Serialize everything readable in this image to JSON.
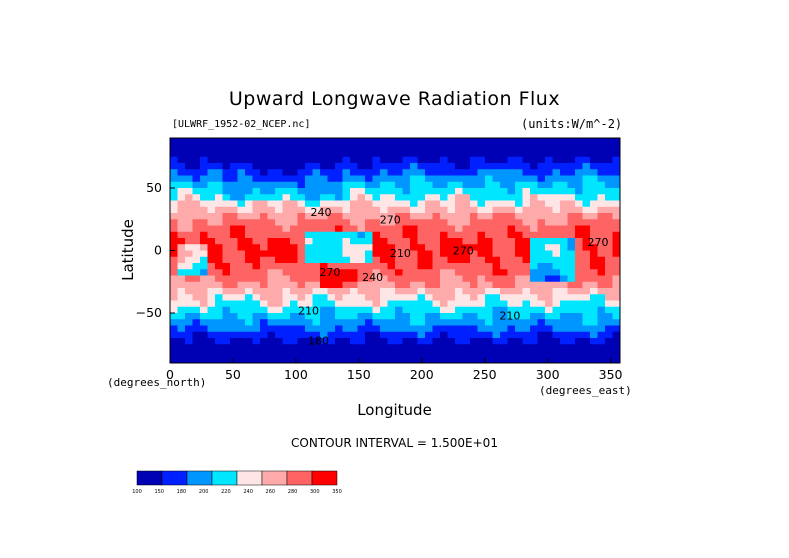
{
  "chart_data": {
    "type": "heatmap",
    "title": "Upward Longwave Radiation Flux",
    "file_label": "[ULWRF_1952-02_NCEP.nc]",
    "units_label": "(units:W/m^-2)",
    "xlabel": "Longitude",
    "ylabel": "Latitude",
    "x_units_note": "(degrees_east)",
    "y_units_note": "(degrees_north)",
    "xlim": [
      0,
      357.5
    ],
    "ylim": [
      -90,
      90
    ],
    "x_ticks": [
      0,
      50,
      100,
      150,
      200,
      250,
      300,
      350
    ],
    "y_ticks": [
      50,
      0,
      -50
    ],
    "contour_interval": "CONTOUR INTERVAL = 1.500E+01",
    "colorbar": {
      "levels": [
        "100",
        "150",
        "180",
        "200",
        "220",
        "240",
        "260",
        "280",
        "300",
        "350"
      ],
      "colors": [
        "#0000b4",
        "#0020ff",
        "#0096ff",
        "#00e6ff",
        "#ffe6e6",
        "#ffaaaa",
        "#ff6464",
        "#ff0000"
      ]
    },
    "contour_labels": [
      {
        "text": "240",
        "lon": 120,
        "lat": 31
      },
      {
        "text": "270",
        "lon": 175,
        "lat": 25
      },
      {
        "text": "210",
        "lon": 183,
        "lat": -2
      },
      {
        "text": "270",
        "lon": 233,
        "lat": 0
      },
      {
        "text": "270",
        "lon": 340,
        "lat": 7
      },
      {
        "text": "240",
        "lon": 161,
        "lat": -21
      },
      {
        "text": "270",
        "lon": 127,
        "lat": -17
      },
      {
        "text": "210",
        "lon": 110,
        "lat": -48
      },
      {
        "text": "180",
        "lon": 118,
        "lat": -72
      },
      {
        "text": "210",
        "lon": 270,
        "lat": -52
      }
    ]
  }
}
